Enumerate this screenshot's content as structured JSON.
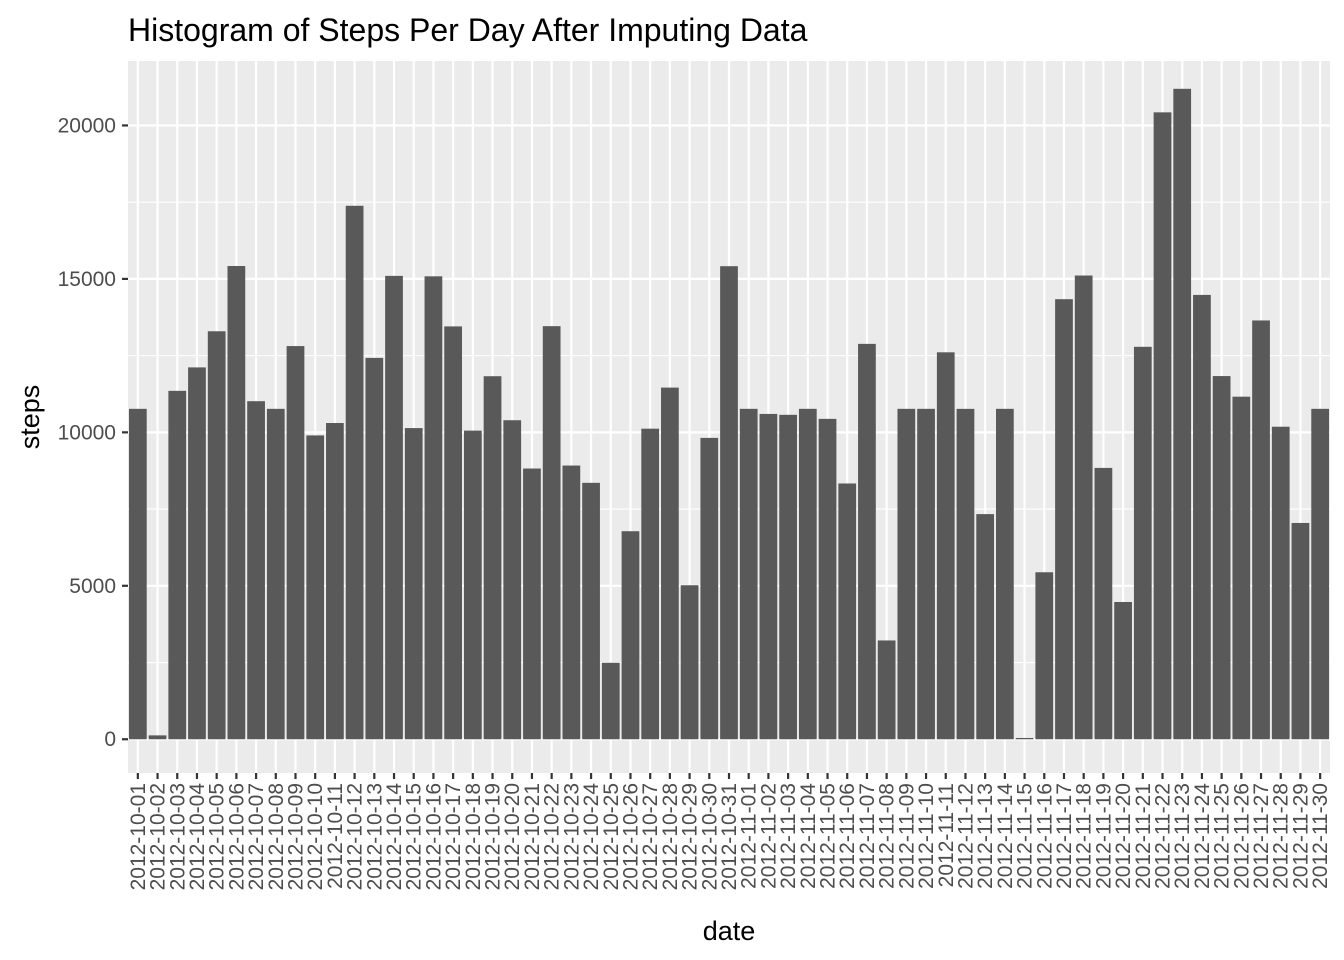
{
  "chart_data": {
    "type": "bar",
    "title": "Histogram of Steps Per Day After Imputing Data",
    "xlabel": "date",
    "ylabel": "steps",
    "ylim": [
      -1100,
      22100
    ],
    "yticks": [
      0,
      5000,
      10000,
      15000,
      20000
    ],
    "y_tick_labels": [
      "0",
      "5000",
      "10000",
      "15000",
      "20000"
    ],
    "grid": true,
    "legend": "none",
    "bar_color": "#595959",
    "panel_color": "#ebebeb",
    "categories": [
      "2012-10-01",
      "2012-10-02",
      "2012-10-03",
      "2012-10-04",
      "2012-10-05",
      "2012-10-06",
      "2012-10-07",
      "2012-10-08",
      "2012-10-09",
      "2012-10-10",
      "2012-10-11",
      "2012-10-12",
      "2012-10-13",
      "2012-10-14",
      "2012-10-15",
      "2012-10-16",
      "2012-10-17",
      "2012-10-18",
      "2012-10-19",
      "2012-10-20",
      "2012-10-21",
      "2012-10-22",
      "2012-10-23",
      "2012-10-24",
      "2012-10-25",
      "2012-10-26",
      "2012-10-27",
      "2012-10-28",
      "2012-10-29",
      "2012-10-30",
      "2012-10-31",
      "2012-11-01",
      "2012-11-02",
      "2012-11-03",
      "2012-11-04",
      "2012-11-05",
      "2012-11-06",
      "2012-11-07",
      "2012-11-08",
      "2012-11-09",
      "2012-11-10",
      "2012-11-11",
      "2012-11-12",
      "2012-11-13",
      "2012-11-14",
      "2012-11-15",
      "2012-11-16",
      "2012-11-17",
      "2012-11-18",
      "2012-11-19",
      "2012-11-20",
      "2012-11-21",
      "2012-11-22",
      "2012-11-23",
      "2012-11-24",
      "2012-11-25",
      "2012-11-26",
      "2012-11-27",
      "2012-11-28",
      "2012-11-29",
      "2012-11-30"
    ],
    "values": [
      10766,
      126,
      11352,
      12116,
      13294,
      15420,
      11015,
      10766,
      12811,
      9900,
      10304,
      17382,
      12426,
      15098,
      10139,
      15084,
      13452,
      10056,
      11829,
      10395,
      8821,
      13460,
      8918,
      8355,
      2492,
      6778,
      10119,
      11458,
      5018,
      9819,
      15414,
      10766,
      10600,
      10571,
      10766,
      10439,
      8334,
      12883,
      3219,
      10766,
      10766,
      12608,
      10765,
      7336,
      10766,
      41,
      5441,
      14339,
      15110,
      8841,
      4472,
      12787,
      20427,
      21194,
      14478,
      11834,
      11162,
      13646,
      10183,
      7047,
      10766
    ]
  }
}
